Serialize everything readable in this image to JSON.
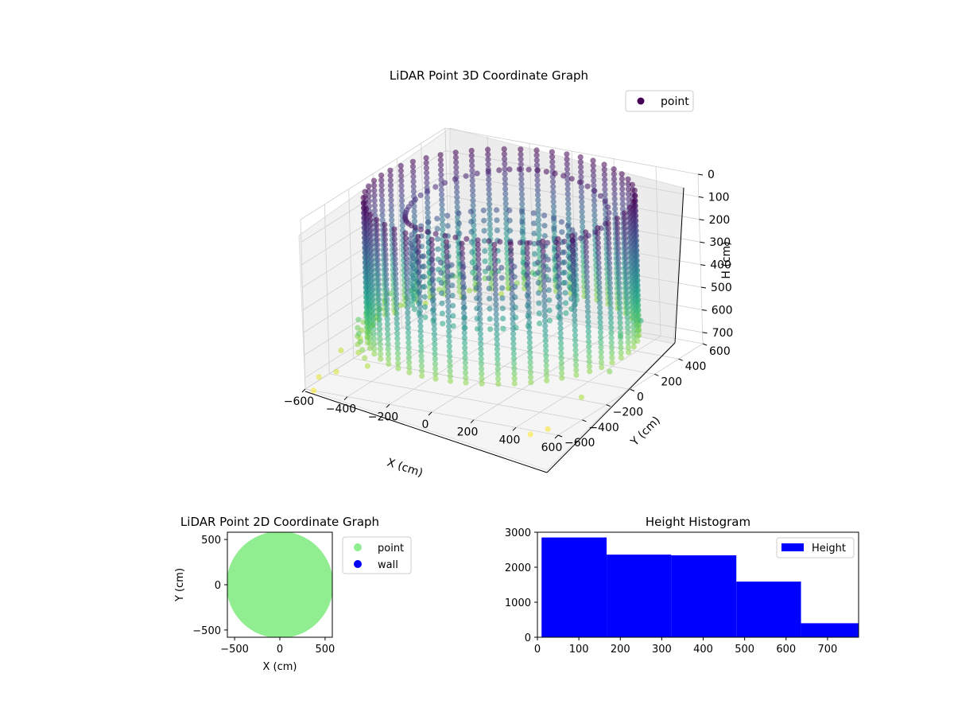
{
  "chart_data": [
    {
      "type": "scatter",
      "title": "LiDAR Point 3D Coordinate Graph",
      "xlabel": "X (cm)",
      "ylabel": "Y (cm)",
      "zlabel": "H (cm)",
      "xlim": [
        -600,
        600
      ],
      "ylim": [
        -600,
        600
      ],
      "zlim": [
        0,
        750
      ],
      "z_inverted": true,
      "xticks": [
        "−600",
        "−400",
        "−200",
        "0",
        "200",
        "400",
        "600"
      ],
      "yticks": [
        "−600",
        "−400",
        "−200",
        "0",
        "200",
        "400",
        "600"
      ],
      "zticks": [
        "0",
        "100",
        "200",
        "300",
        "400",
        "500",
        "600",
        "700"
      ],
      "legend": [
        "point"
      ],
      "legend_placement": "top-right",
      "colormap": "viridis",
      "grid": true,
      "series": [
        {
          "name": "point",
          "outer_wall": {
            "center": [
              0,
              0
            ],
            "radius": 560,
            "h_range": [
              0,
              620
            ],
            "columns": 52
          },
          "inner_ring": {
            "center": [
              -20,
              -30
            ],
            "radius": 340,
            "h_range": [
              180,
              450
            ]
          },
          "scattered": [
            {
              "x": -560,
              "y": -600,
              "h": 750
            },
            {
              "x": -580,
              "y": -520,
              "h": 720
            },
            {
              "x": -520,
              "y": -480,
              "h": 700
            },
            {
              "x": -600,
              "y": -300,
              "h": 680
            },
            {
              "x": 480,
              "y": -620,
              "h": 760
            },
            {
              "x": 540,
              "y": -580,
              "h": 740
            },
            {
              "x": 600,
              "y": -400,
              "h": 650
            },
            {
              "x": 620,
              "y": -200,
              "h": 600
            },
            {
              "x": 560,
              "y": 0,
              "h": 520
            },
            {
              "x": 600,
              "y": 100,
              "h": 480
            }
          ]
        }
      ]
    },
    {
      "type": "scatter",
      "title": "LiDAR Point 2D Coordinate Graph",
      "xlabel": "X (cm)",
      "ylabel": "Y (cm)",
      "xlim": [
        -580,
        580
      ],
      "ylim": [
        -580,
        580
      ],
      "xticks": [
        "−500",
        "0",
        "500"
      ],
      "yticks": [
        "−500",
        "0",
        "500"
      ],
      "legend": [
        "point",
        "wall"
      ],
      "legend_placement": "outside-right",
      "series": [
        {
          "name": "point",
          "color": "#90ee90",
          "region": {
            "type": "disc",
            "center": [
              0,
              0
            ],
            "radius": 590
          }
        },
        {
          "name": "wall",
          "color": "#0000ff",
          "values": []
        }
      ]
    },
    {
      "type": "bar",
      "title": "Height Histogram",
      "xlim": [
        0,
        775
      ],
      "ylim": [
        0,
        3000
      ],
      "xticks": [
        "0",
        "100",
        "200",
        "300",
        "400",
        "500",
        "600",
        "700"
      ],
      "yticks": [
        "0",
        "1000",
        "2000",
        "3000"
      ],
      "legend": [
        "Height"
      ],
      "legend_placement": "top-right",
      "series": [
        {
          "name": "Height",
          "color": "#0000ff",
          "bins": [
            {
              "x0": 10,
              "x1": 167,
              "count": 2850
            },
            {
              "x0": 167,
              "x1": 323,
              "count": 2360
            },
            {
              "x0": 323,
              "x1": 480,
              "count": 2340
            },
            {
              "x0": 480,
              "x1": 636,
              "count": 1590
            },
            {
              "x0": 636,
              "x1": 775,
              "count": 400
            }
          ]
        }
      ]
    }
  ]
}
